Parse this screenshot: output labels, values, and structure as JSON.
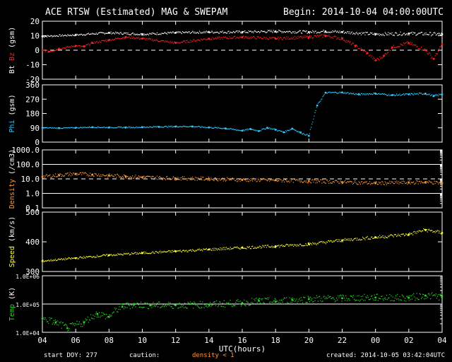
{
  "header": {
    "title": "ACE RTSW (Estimated) MAG & SWEPAM",
    "begin": "Begin: 2014-10-04 04:00:00UTC"
  },
  "footer": {
    "start_doy": "start DOY: 277",
    "caution": "caution:",
    "density_note": "density < 1",
    "created": "created: 2014-10-05 03:42:04UTC"
  },
  "colors": {
    "bt": "#ffffff",
    "bz": "#ff2020",
    "phi": "#30c8ff",
    "density": "#ff9933",
    "speed": "#ffff33",
    "temp": "#22dd22",
    "axis": "#ffffff",
    "background": "#000000"
  },
  "chart_data": [
    {
      "type": "scatter",
      "panel": "mag",
      "ylabel_parts": [
        "Bt",
        "Bz",
        "(gsm)"
      ],
      "ylim": [
        -20,
        20
      ],
      "yticks": [
        "20",
        "10",
        "0",
        "-10",
        "-20"
      ],
      "ref_lines": [
        0
      ],
      "series": [
        {
          "name": "Bt",
          "x": [
            0,
            2,
            4,
            6,
            8,
            10,
            12,
            14,
            16,
            17,
            18,
            20,
            22,
            24
          ],
          "values": [
            9.5,
            10.5,
            12,
            11,
            12,
            12.5,
            12.5,
            13,
            12.5,
            13,
            12.5,
            11,
            11.5,
            11
          ]
        },
        {
          "name": "Bz",
          "x": [
            0,
            0.4,
            1,
            2,
            2.5,
            3,
            4,
            5,
            6,
            8,
            10,
            12,
            14,
            16,
            17,
            18,
            18.8,
            19.5,
            20,
            20.5,
            21,
            22,
            23,
            23.5,
            24
          ],
          "values": [
            0,
            -1,
            1,
            3,
            2.5,
            5,
            7,
            9,
            8,
            5,
            8,
            9,
            8,
            9,
            10,
            8,
            3,
            -2,
            -7,
            -4,
            2,
            5,
            0,
            -6,
            4
          ]
        }
      ]
    },
    {
      "type": "scatter",
      "panel": "phi",
      "ylabel_parts": [
        "Phi",
        "(gsm)"
      ],
      "ylim": [
        0,
        360
      ],
      "yticks": [
        "360",
        "270",
        "180",
        "90",
        "0"
      ],
      "series": [
        {
          "name": "Phi",
          "x": [
            0,
            1,
            2,
            3,
            4,
            5,
            6,
            7,
            8,
            9,
            10,
            11,
            12,
            12.5,
            13,
            13.5,
            14,
            14.5,
            15,
            15.5,
            16,
            16.5,
            17,
            18,
            19,
            20,
            21,
            22,
            23,
            23.5,
            24
          ],
          "values": [
            90,
            88,
            90,
            94,
            92,
            92,
            94,
            96,
            98,
            98,
            92,
            86,
            72,
            82,
            70,
            90,
            78,
            62,
            85,
            60,
            40,
            230,
            310,
            312,
            300,
            305,
            295,
            300,
            305,
            290,
            300
          ]
        }
      ]
    },
    {
      "type": "scatter",
      "panel": "density",
      "log": true,
      "ylabel_parts": [
        "Density",
        "(/cm3)"
      ],
      "ylim": [
        0.1,
        1000
      ],
      "yticks": [
        "1000.0",
        "100.0",
        "10.0",
        "1.0",
        "0.1"
      ],
      "ref_lines": [
        100,
        10,
        1
      ],
      "series": [
        {
          "name": "Density",
          "x": [
            0,
            1,
            2,
            3,
            4,
            5,
            6,
            8,
            10,
            12,
            14,
            16,
            18,
            20,
            22,
            23,
            24
          ],
          "values": [
            14,
            18,
            22,
            20,
            17,
            15,
            13,
            11,
            10,
            8.5,
            8,
            7,
            6,
            5,
            5.5,
            6,
            5
          ]
        }
      ]
    },
    {
      "type": "scatter",
      "panel": "speed",
      "ylabel_parts": [
        "Speed",
        "(km/s)"
      ],
      "ylim": [
        300,
        500
      ],
      "yticks": [
        "500",
        "400",
        "300"
      ],
      "series": [
        {
          "name": "Speed",
          "x": [
            0,
            2,
            4,
            6,
            8,
            10,
            12,
            14,
            16,
            18,
            20,
            22,
            23,
            24
          ],
          "values": [
            335,
            345,
            355,
            362,
            368,
            374,
            380,
            385,
            392,
            405,
            415,
            425,
            440,
            430
          ]
        }
      ]
    },
    {
      "type": "scatter",
      "panel": "temp",
      "log": true,
      "ylabel_parts": [
        "Temp",
        "(K)"
      ],
      "ylim": [
        10000,
        1000000
      ],
      "yticks": [
        "1.0E+06",
        "1.0E+05",
        "1.0E+04"
      ],
      "ref_lines": [
        100000
      ],
      "series": [
        {
          "name": "Temp",
          "x": [
            0,
            0.8,
            1.5,
            2.5,
            3.3,
            4,
            4.8,
            5.5,
            6.5,
            8,
            10,
            12,
            13,
            14,
            15,
            16,
            18,
            20,
            22,
            23,
            24
          ],
          "values": [
            30000,
            22000,
            14000,
            22000,
            45000,
            35000,
            80000,
            95000,
            90000,
            90000,
            95000,
            110000,
            130000,
            120000,
            140000,
            150000,
            160000,
            170000,
            165000,
            200000,
            180000
          ]
        }
      ]
    }
  ],
  "x_axis": {
    "xlim": [
      0,
      24
    ],
    "xlabel": "UTC(hours)",
    "tick_labels": [
      "04",
      "06",
      "08",
      "10",
      "12",
      "14",
      "16",
      "18",
      "20",
      "22",
      "00",
      "02",
      "04"
    ]
  }
}
